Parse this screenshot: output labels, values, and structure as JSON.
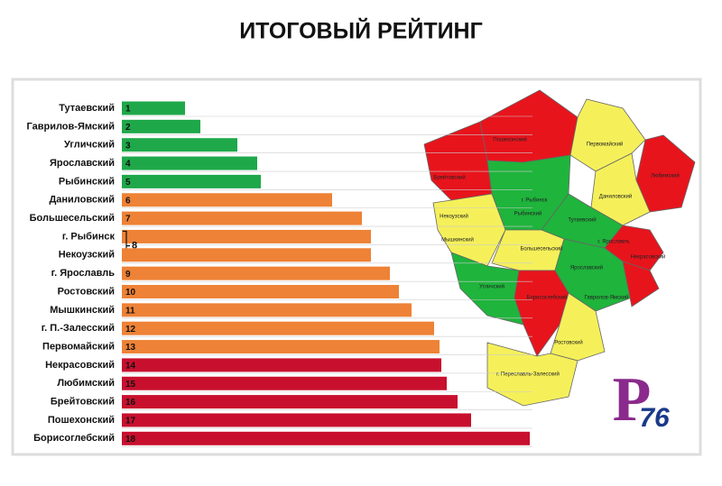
{
  "chart_data": {
    "type": "bar",
    "title": "ИТОГОВЫЙ РЕЙТИНГ",
    "categories": [
      "Тутаевский",
      "Гаврилов-Ямский",
      "Угличский",
      "Ярославский",
      "Рыбинский",
      "Даниловский",
      "Большесельский",
      "г. Рыбинск",
      "Некоузский",
      "г. Ярославль",
      "Ростовский",
      "Мышкинский",
      "г. П.-Залесский",
      "Первомайский",
      "Некрасовский",
      "Любимский",
      "Брейтовский",
      "Пошехонский",
      "Борисоглебский"
    ],
    "values": [
      70,
      87,
      128,
      150,
      154,
      233,
      266,
      276,
      276,
      297,
      307,
      321,
      346,
      352,
      354,
      360,
      372,
      387,
      452
    ],
    "ranks": [
      1,
      2,
      3,
      4,
      5,
      6,
      7,
      8,
      null,
      9,
      10,
      11,
      12,
      13,
      14,
      15,
      16,
      17,
      18
    ],
    "colors": [
      "#1fa84a",
      "#1fa84a",
      "#1fa84a",
      "#1fa84a",
      "#1fa84a",
      "#ee8236",
      "#ee8236",
      "#ee8236",
      "#ee8236",
      "#ee8236",
      "#ee8236",
      "#ee8236",
      "#ee8236",
      "#ee8236",
      "#c8102e",
      "#c8102e",
      "#c8102e",
      "#c8102e",
      "#c8102e"
    ],
    "xlim": [
      0,
      460
    ]
  },
  "map": {
    "labels": [
      "Пошехонский",
      "Первомайский",
      "Любимский",
      "Брейтовский",
      "г. Рыбинск",
      "Рыбинский",
      "Даниловский",
      "Некоузский",
      "Тутаевский",
      "Мышкинский",
      "Большесельский",
      "г. Ярославль",
      "Ярославский",
      "Некрасовский",
      "Угличский",
      "Борисоглебский",
      "Гаврилов-Ямский",
      "Ростовский",
      "г. Переславль-Залесский"
    ]
  },
  "logo": "76"
}
